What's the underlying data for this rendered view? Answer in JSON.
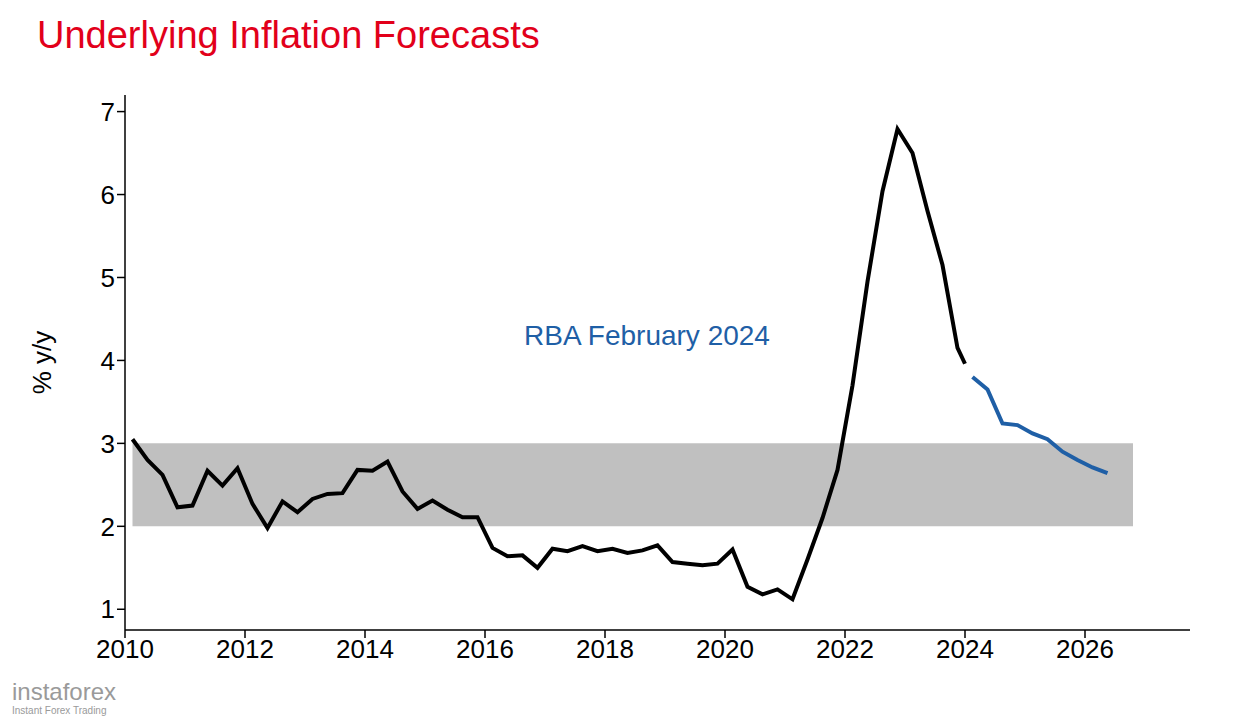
{
  "chart_data": {
    "type": "line",
    "title": "Underlying Inflation Forecasts",
    "y_label": "% y/y",
    "annotation": "RBA February 2024",
    "watermark": {
      "name": "instaforex",
      "tagline": "Instant Forex Trading"
    },
    "x": [
      2010.125,
      2010.375,
      2010.625,
      2010.875,
      2011.125,
      2011.375,
      2011.625,
      2011.875,
      2012.125,
      2012.375,
      2012.625,
      2012.875,
      2013.125,
      2013.375,
      2013.625,
      2013.875,
      2014.125,
      2014.375,
      2014.625,
      2014.875,
      2015.125,
      2015.375,
      2015.625,
      2015.875,
      2016.125,
      2016.375,
      2016.625,
      2016.875,
      2017.125,
      2017.375,
      2017.625,
      2017.875,
      2018.125,
      2018.375,
      2018.625,
      2018.875,
      2019.125,
      2019.375,
      2019.625,
      2019.875,
      2020.125,
      2020.375,
      2020.625,
      2020.875,
      2021.125,
      2021.375,
      2021.625,
      2021.875,
      2022.125,
      2022.375,
      2022.625,
      2022.875,
      2023.125,
      2023.375,
      2023.625,
      2023.875,
      2024.0,
      2024.125,
      2024.375,
      2024.625,
      2024.875,
      2025.125,
      2025.375,
      2025.625,
      2025.875,
      2026.125,
      2026.375
    ],
    "series": [
      {
        "color": "#000000",
        "values": [
          3.05,
          2.8,
          2.62,
          2.23,
          2.25,
          2.67,
          2.49,
          2.7,
          2.27,
          1.98,
          2.3,
          2.17,
          2.33,
          2.39,
          2.4,
          2.68,
          2.67,
          2.78,
          2.42,
          2.21,
          2.31,
          2.2,
          2.11,
          2.11,
          1.74,
          1.64,
          1.65,
          1.5,
          1.73,
          1.7,
          1.76,
          1.7,
          1.73,
          1.68,
          1.71,
          1.77,
          1.57,
          1.55,
          1.53,
          1.55,
          1.72,
          1.27,
          1.18,
          1.24,
          1.12,
          1.6,
          2.1,
          2.68,
          3.7,
          4.95,
          6.04,
          6.79,
          6.5,
          5.8,
          5.15,
          4.15,
          3.96,
          null,
          null,
          null,
          null,
          null,
          null,
          null,
          null,
          null,
          null
        ]
      },
      {
        "color": "#1f5fa6",
        "values": [
          null,
          null,
          null,
          null,
          null,
          null,
          null,
          null,
          null,
          null,
          null,
          null,
          null,
          null,
          null,
          null,
          null,
          null,
          null,
          null,
          null,
          null,
          null,
          null,
          null,
          null,
          null,
          null,
          null,
          null,
          null,
          null,
          null,
          null,
          null,
          null,
          null,
          null,
          null,
          null,
          null,
          null,
          null,
          null,
          null,
          null,
          null,
          null,
          null,
          null,
          null,
          null,
          null,
          null,
          null,
          null,
          null,
          3.8,
          3.65,
          3.24,
          3.22,
          3.12,
          3.05,
          2.9,
          2.8,
          2.71,
          2.64
        ]
      }
    ],
    "target_band": {
      "x": [
        2010.125,
        2026.8
      ],
      "y": [
        2,
        3
      ]
    },
    "xlim": [
      2010,
      2027.75
    ],
    "xticks": [
      2010,
      2012,
      2014,
      2016,
      2018,
      2020,
      2022,
      2024,
      2026
    ],
    "ylim": [
      0.75,
      7.2
    ],
    "yticks": [
      1,
      2,
      3,
      4,
      5,
      6,
      7
    ],
    "grid": false
  }
}
